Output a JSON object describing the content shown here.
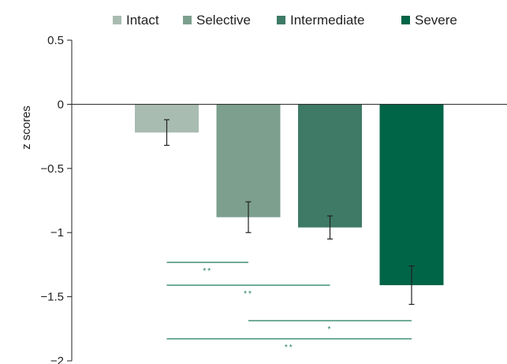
{
  "chart_data": {
    "type": "bar",
    "ylabel": "z scores",
    "ylim": [
      -2,
      0.5
    ],
    "yticks": [
      0.5,
      0,
      -0.5,
      -1,
      -1.5,
      -2
    ],
    "ytick_labels": [
      "0.5",
      "0",
      "−0.5",
      "−1",
      "−1.5",
      "−2"
    ],
    "grid": false,
    "legend_position": "top",
    "categories": [
      "Intact",
      "Selective",
      "Intermediate",
      "Severe"
    ],
    "values": [
      -0.22,
      -0.88,
      -0.96,
      -1.41
    ],
    "error": [
      0.1,
      0.12,
      0.09,
      0.15
    ],
    "colors": [
      "#a9bcb2",
      "#7c9f8e",
      "#3e7a65",
      "#006446"
    ],
    "significance": [
      {
        "from": 0,
        "to": 1,
        "label": "**"
      },
      {
        "from": 0,
        "to": 2,
        "label": "**"
      },
      {
        "from": 1,
        "to": 3,
        "label": "*"
      },
      {
        "from": 0,
        "to": 3,
        "label": "**"
      }
    ],
    "significance_color": "#1e7a5a"
  }
}
